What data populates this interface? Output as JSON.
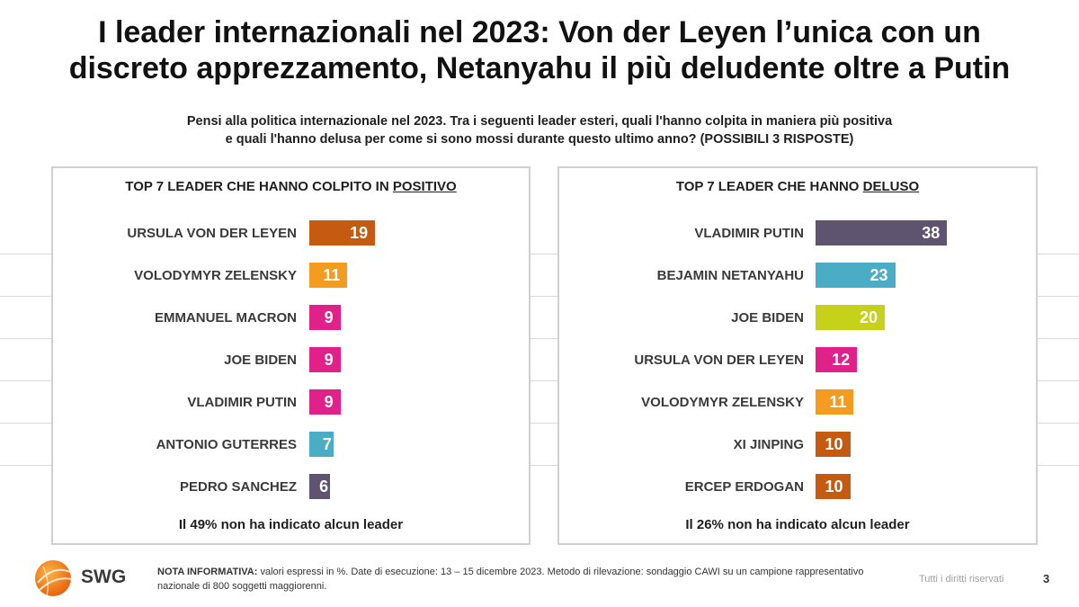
{
  "title": {
    "line1": "I leader internazionali nel 2023: Von der Leyen l’unica con un",
    "line2": "discreto apprezzamento, Netanyahu il più deludente oltre a Putin"
  },
  "subtitle": {
    "line1": "Pensi alla politica internazionale nel 2023. Tra i seguenti leader esteri, quali l'hanno colpita in maniera più positiva",
    "line2": "e quali l'hanno delusa per come si sono mossi durante questo ultimo anno? (POSSIBILI 3 RISPOSTE)"
  },
  "chart_data": [
    {
      "type": "bar",
      "orientation": "horizontal",
      "title_prefix": "TOP 7 LEADER CHE HANNO COLPITO IN ",
      "title_emph": "POSITIVO",
      "categories": [
        "URSULA VON DER LEYEN",
        "VOLODYMYR ZELENSKY",
        "EMMANUEL MACRON",
        "JOE BIDEN",
        "VLADIMIR PUTIN",
        "ANTONIO GUTERRES",
        "PEDRO SANCHEZ"
      ],
      "values": [
        19,
        11,
        9,
        9,
        9,
        7,
        6
      ],
      "colors": [
        "#C55A11",
        "#F39C1F",
        "#E0218A",
        "#E0218A",
        "#E0218A",
        "#4BACC6",
        "#5E5470"
      ],
      "note": "Il 49% non ha indicato alcun leader",
      "xlim": [
        0,
        40
      ]
    },
    {
      "type": "bar",
      "orientation": "horizontal",
      "title_prefix": "TOP 7 LEADER CHE HANNO ",
      "title_emph": "DELUSO",
      "categories": [
        "VLADIMIR PUTIN",
        "BEJAMIN NETANYAHU",
        "JOE BIDEN",
        "URSULA VON DER LEYEN",
        "VOLODYMYR ZELENSKY",
        "XI JINPING",
        "ERCEP ERDOGAN"
      ],
      "values": [
        38,
        23,
        20,
        12,
        11,
        10,
        10
      ],
      "colors": [
        "#5E5470",
        "#4BACC6",
        "#C6D11A",
        "#E0218A",
        "#F39C1F",
        "#C55A11",
        "#C55A11"
      ],
      "note": "Il 26% non ha indicato alcun leader",
      "xlim": [
        0,
        40
      ]
    }
  ],
  "footer": {
    "logo_text": "SWG",
    "note_label": "NOTA INFORMATIVA:",
    "note_text": " valori espressi in %. Date di esecuzione: 13 – 15 dicembre 2023. Metodo di rilevazione: sondaggio CAWI su un campione rappresentativo nazionale di 800 soggetti maggiorenni.",
    "rights": "Tutti i diritti riservati",
    "page_number": "3"
  }
}
